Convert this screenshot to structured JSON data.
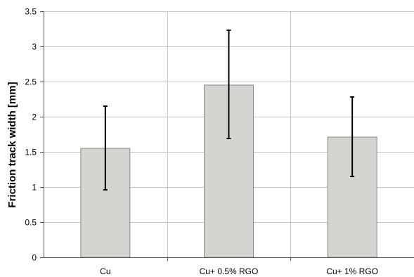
{
  "chart_data": {
    "type": "bar",
    "title": "",
    "xlabel": "",
    "ylabel": "Friction track width [mm]",
    "categories": [
      "Cu",
      "Cu+ 0.5% RGO",
      "Cu+ 1% RGO"
    ],
    "values": [
      1.55,
      2.45,
      1.71
    ],
    "error_bars": [
      {
        "low": 0.96,
        "high": 2.15
      },
      {
        "low": 1.69,
        "high": 3.23
      },
      {
        "low": 1.15,
        "high": 2.28
      }
    ],
    "ylim": [
      0,
      3.5
    ],
    "yticks": [
      "0",
      "0.5",
      "1",
      "1.5",
      "2",
      "2.5",
      "3",
      "3.5"
    ],
    "grid": true,
    "colors": {
      "bar_fill": "#d4d5d1",
      "bar_stroke": "#8a8a8a",
      "grid": "#c8c8c8",
      "axis": "#555555",
      "error_bar": "#000000"
    }
  }
}
